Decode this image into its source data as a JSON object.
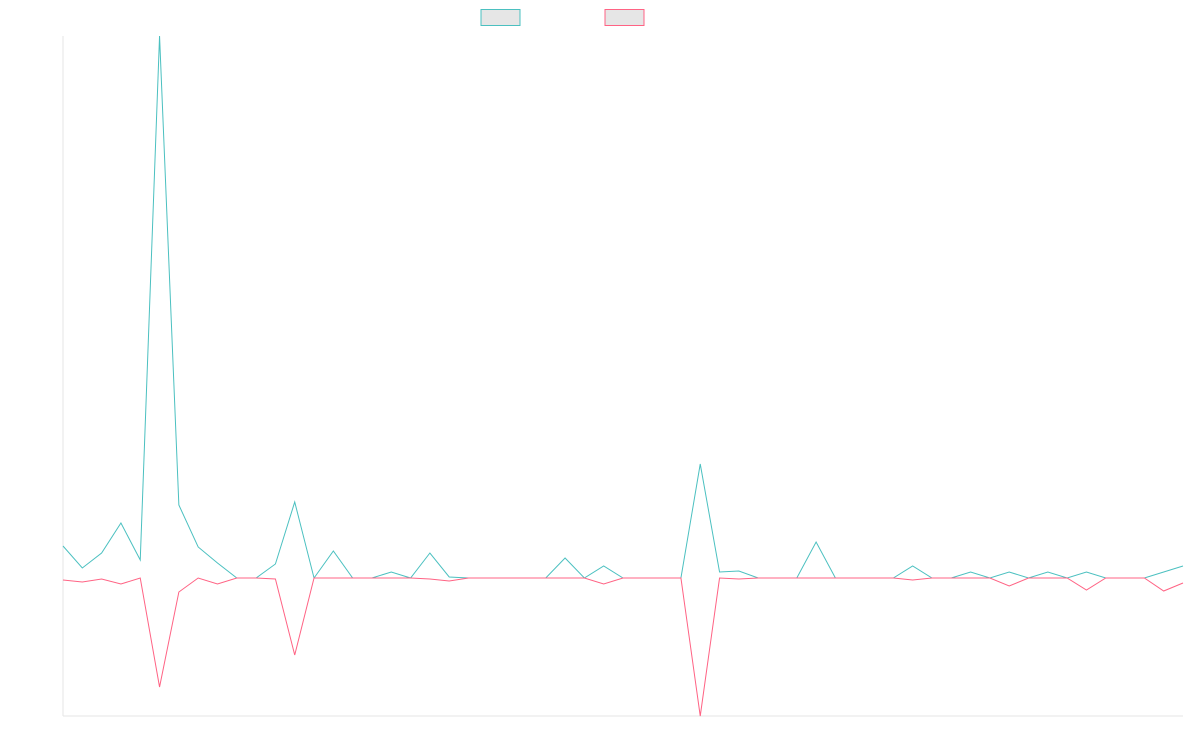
{
  "chart_data": {
    "type": "line",
    "series": [
      {
        "color": "#4bc0c0",
        "values": [
          32,
          10,
          25,
          55,
          18,
          542,
          73,
          31,
          15,
          0,
          0,
          14,
          76,
          0,
          27,
          0,
          0,
          6,
          0,
          25,
          1,
          0,
          0,
          0,
          0,
          0,
          20,
          0,
          12,
          0,
          0,
          0,
          0,
          114,
          6,
          7,
          0,
          0,
          0,
          36,
          0,
          0,
          0,
          0,
          12,
          0,
          0,
          6,
          0,
          6,
          0,
          6,
          0,
          6,
          0,
          0,
          0,
          6,
          12
        ]
      },
      {
        "color": "#ff6384",
        "values": [
          -2,
          -4,
          -1,
          -6,
          0,
          -109,
          -14,
          0,
          -6,
          0,
          0,
          -1,
          -77,
          0,
          0,
          0,
          0,
          0,
          0,
          -1,
          -3,
          0,
          0,
          0,
          0,
          0,
          0,
          0,
          -6,
          0,
          0,
          0,
          0,
          -138,
          0,
          -1,
          0,
          0,
          0,
          0,
          0,
          0,
          0,
          0,
          -2,
          0,
          0,
          0,
          0,
          -8,
          0,
          0,
          0,
          -12,
          0,
          0,
          0,
          -13,
          -5
        ]
      }
    ],
    "ylim": [
      -138,
      542
    ]
  }
}
